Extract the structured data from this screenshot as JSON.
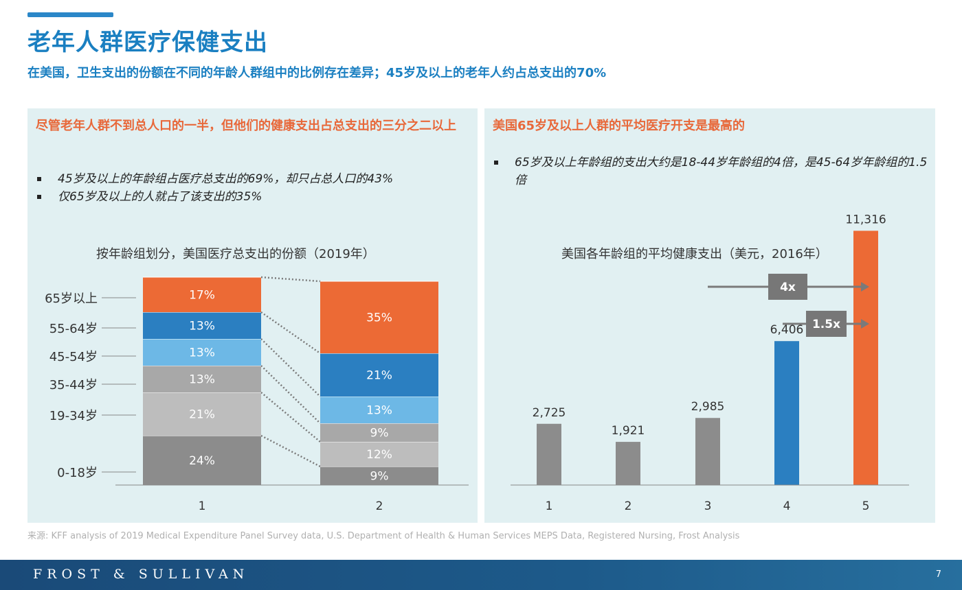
{
  "header": {
    "title": "老年人群医疗保健支出",
    "subtitle": "在美国，卫生支出的份额在不同的年龄人群组中的比例存在差异；45岁及以上的老年人约占总支出的70%"
  },
  "left_panel": {
    "heading": "尽管老年人群不到总人口的一半，但他们的健康支出占总支出的三分之二以上",
    "bullets": [
      "45岁及以上的年龄组占医疗总支出的69%，却只占总人口的43%",
      "仅65岁及以上的人就占了该支出的35%"
    ]
  },
  "right_panel": {
    "heading": "美国65岁及以上人群的平均医疗开支是最高的",
    "bullets": [
      "65岁及以上年龄组的支出大约是18-44岁年龄组的4倍，是45-64岁年龄组的1.5倍"
    ]
  },
  "chart_data": [
    {
      "type": "bar",
      "stacked": true,
      "title": "按年龄组划分，美国医疗总支出的份额（2019年）",
      "categories": [
        "1",
        "2"
      ],
      "age_groups_bottom_to_top": [
        "0-18岁",
        "19-34岁",
        "35-44岁",
        "45-54岁",
        "55-64岁",
        "65岁以上"
      ],
      "columns": [
        {
          "category": "1",
          "segment_values": [
            24,
            21,
            13,
            13,
            13,
            17
          ],
          "segment_labels": [
            "24%",
            "21%",
            "13%",
            "13%",
            "13%",
            "17%"
          ]
        },
        {
          "category": "2",
          "segment_values": [
            9,
            12,
            9,
            13,
            21,
            35
          ],
          "segment_labels": [
            "9%",
            "12%",
            "9%",
            "13%",
            "21%",
            "35%"
          ]
        }
      ],
      "colors": [
        "#8c8c8c",
        "#bdbdbd",
        "#a8a8a8",
        "#6db8e6",
        "#2b7fc1",
        "#ec6a35"
      ],
      "connector_style": "dotted",
      "ylim": [
        0,
        100
      ]
    },
    {
      "type": "bar",
      "title": "美国各年龄组的平均健康支出（美元，2016年）",
      "categories": [
        "1",
        "2",
        "3",
        "4",
        "5"
      ],
      "values": [
        2725,
        1921,
        2985,
        6406,
        11316
      ],
      "value_labels": [
        "2,725",
        "1,921",
        "2,985",
        "6,406",
        "11,316"
      ],
      "colors": [
        "#8c8c8c",
        "#8c8c8c",
        "#8c8c8c",
        "#2b7fc1",
        "#ec6a35"
      ],
      "ylim": [
        0,
        12000
      ],
      "annotations": [
        "4x",
        "1.5x"
      ]
    }
  ],
  "source": "来源: KFF analysis of 2019 Medical Expenditure Panel Survey data, U.S. Department of Health & Human Services MEPS Data, Registered Nursing, Frost Analysis",
  "footer": {
    "brand": "FROST & SULLIVAN",
    "page_number": "7"
  }
}
